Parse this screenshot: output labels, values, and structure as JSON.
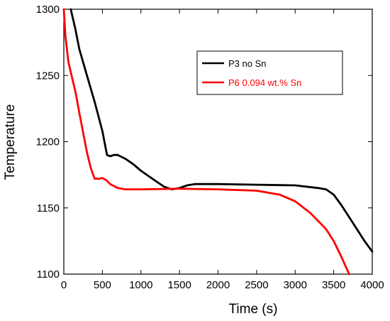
{
  "chart_data": {
    "type": "line",
    "title": "",
    "xlabel": "Time (s)",
    "ylabel": "Temperature",
    "xlim": [
      0,
      4000
    ],
    "ylim": [
      1100,
      1300
    ],
    "xticks": [
      0,
      500,
      1000,
      1500,
      2000,
      2500,
      3000,
      3500,
      4000
    ],
    "yticks": [
      1100,
      1150,
      1200,
      1250,
      1300
    ],
    "grid": false,
    "legend_position": "top-right",
    "series": [
      {
        "name": "P3 no Sn",
        "color": "#000000",
        "points": [
          [
            90,
            1300
          ],
          [
            150,
            1285
          ],
          [
            200,
            1270
          ],
          [
            300,
            1250
          ],
          [
            400,
            1230
          ],
          [
            500,
            1208
          ],
          [
            560,
            1190
          ],
          [
            600,
            1189
          ],
          [
            650,
            1190
          ],
          [
            700,
            1190
          ],
          [
            800,
            1187
          ],
          [
            900,
            1183
          ],
          [
            1000,
            1178
          ],
          [
            1100,
            1174
          ],
          [
            1200,
            1170
          ],
          [
            1300,
            1166
          ],
          [
            1400,
            1164
          ],
          [
            1500,
            1165
          ],
          [
            1600,
            1167
          ],
          [
            1700,
            1168
          ],
          [
            2000,
            1168
          ],
          [
            2500,
            1167.5
          ],
          [
            3000,
            1167
          ],
          [
            3300,
            1165
          ],
          [
            3400,
            1164
          ],
          [
            3500,
            1160
          ],
          [
            3600,
            1152
          ],
          [
            3700,
            1143
          ],
          [
            3800,
            1134
          ],
          [
            3900,
            1125
          ],
          [
            4000,
            1117
          ]
        ]
      },
      {
        "name": "P6 0.094 wt.% Sn",
        "color": "#ff0000",
        "points": [
          [
            0,
            1300
          ],
          [
            20,
            1280
          ],
          [
            60,
            1260
          ],
          [
            100,
            1250
          ],
          [
            150,
            1238
          ],
          [
            200,
            1222
          ],
          [
            250,
            1207
          ],
          [
            300,
            1192
          ],
          [
            350,
            1180
          ],
          [
            400,
            1172
          ],
          [
            450,
            1172
          ],
          [
            500,
            1172.5
          ],
          [
            550,
            1171
          ],
          [
            600,
            1168
          ],
          [
            700,
            1165
          ],
          [
            800,
            1164
          ],
          [
            1000,
            1164
          ],
          [
            1500,
            1164.5
          ],
          [
            2000,
            1164
          ],
          [
            2500,
            1163
          ],
          [
            2800,
            1160
          ],
          [
            3000,
            1155
          ],
          [
            3200,
            1146
          ],
          [
            3400,
            1134
          ],
          [
            3500,
            1125
          ],
          [
            3600,
            1113
          ],
          [
            3700,
            1100
          ]
        ]
      }
    ]
  }
}
